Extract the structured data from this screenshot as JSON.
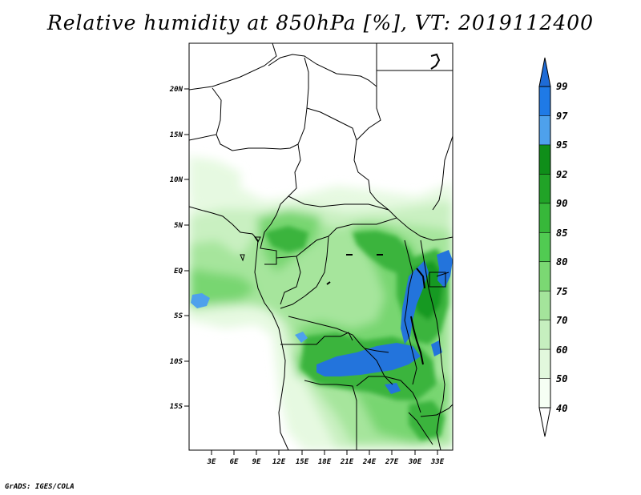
{
  "title": "Relative humidity at 850hPa [%], VT: 2019112400",
  "footer": "GrADS: IGES/COLA",
  "lat_ticks": [
    "20N",
    "15N",
    "10N",
    "5N",
    "EQ",
    "5S",
    "10S",
    "15S"
  ],
  "lon_ticks": [
    "3E",
    "6E",
    "9E",
    "12E",
    "15E",
    "18E",
    "21E",
    "24E",
    "27E",
    "30E",
    "33E"
  ],
  "colorbar": {
    "labels": [
      "99",
      "97",
      "95",
      "92",
      "90",
      "85",
      "80",
      "75",
      "70",
      "60",
      "50",
      "40"
    ],
    "colors": [
      "#1e6bd6",
      "#1f7ae6",
      "#4ea1ec",
      "#0f8e19",
      "#21a327",
      "#37b83a",
      "#51cb52",
      "#7bd873",
      "#a4e49b",
      "#c6efbf",
      "#e2f8dd",
      "#f6fff4"
    ]
  }
}
